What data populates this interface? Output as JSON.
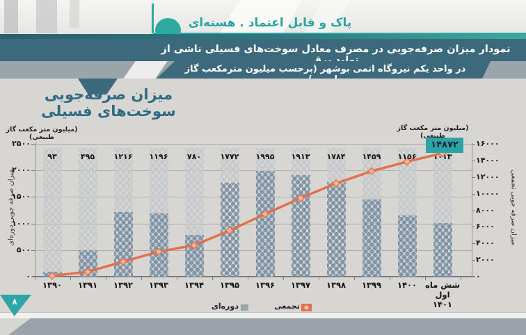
{
  "brand": {
    "tagline": "پاک و قابل اعتماد . هسته‌ای"
  },
  "banner": {
    "line1": "نمودار میزان صرفه‌جویی در مصرف معادل سوخت‌های فسیلی ناشی از تولید برق",
    "line2": "در واحد یکم نیروگاه اتمی بوشهر (برحسب میلیون مترمکعب گاز طبیعی)"
  },
  "page_number": "۸",
  "chart": {
    "title": "میزان صرفه‌جویی سوخت‌های فسیلی",
    "unit_label_left": "(میلیون متر مکعب گاز طبیعی)",
    "unit_label_right": "(میلیون متر مکعب گاز طبیعی)",
    "callout_value": "۱۴۸۷۲",
    "legend": {
      "periodic": "دوره‌ای",
      "cumulative": "تجمعی"
    }
  },
  "chart_data": {
    "type": "bar",
    "title": "میزان صرفه‌جویی سوخت‌های فسیلی",
    "categories": [
      "۱۳۹۰",
      "۱۳۹۱",
      "۱۳۹۲",
      "۱۳۹۳",
      "۱۳۹۴",
      "۱۳۹۵",
      "۱۳۹۶",
      "۱۳۹۷",
      "۱۳۹۸",
      "۱۳۹۹",
      "۱۴۰۰",
      "شش ماه اول\n۱۴۰۱"
    ],
    "series": [
      {
        "name": "دوره‌ای",
        "type": "bar",
        "axis": "left",
        "values": [
          93,
          495,
          1216,
          1196,
          780,
          1772,
          1995,
          1913,
          1784,
          1459,
          1156,
          1013
        ],
        "value_labels": [
          "۹۳",
          "۴۹۵",
          "۱۲۱۶",
          "۱۱۹۶",
          "۷۸۰",
          "۱۷۷۲",
          "۱۹۹۵",
          "۱۹۱۳",
          "۱۷۸۴",
          "۱۴۵۹",
          "۱۱۵۶",
          "۱۰۱۳"
        ]
      },
      {
        "name": "تجمعی",
        "type": "line",
        "axis": "right",
        "values": [
          93,
          588,
          1804,
          3000,
          3780,
          5552,
          7547,
          9460,
          11244,
          12703,
          13859,
          14872
        ],
        "last_value_label": "۱۴۸۷۲"
      }
    ],
    "left_axis": {
      "title": "میزان صرفه جویی دوره‌ای",
      "min": 0,
      "max": 2500,
      "tick_step": 500,
      "tick_labels": [
        "۰",
        "۵۰۰",
        "۱۰۰۰",
        "۱۵۰۰",
        "۲۰۰۰",
        "۲۵۰۰"
      ]
    },
    "right_axis": {
      "title": "میزان صرفه جویی تجمعی",
      "min": 0,
      "max": 16000,
      "tick_step": 2000,
      "tick_labels": [
        "۰",
        "۲۰۰۰",
        "۴۰۰۰",
        "۶۰۰۰",
        "۸۰۰۰",
        "۱۰۰۰۰",
        "۱۲۰۰۰",
        "۱۴۰۰۰",
        "۱۶۰۰۰"
      ]
    },
    "grid": true,
    "legend_position": "bottom",
    "colors": {
      "bar_fill": "#8096a8",
      "bar_background": "#c7cacc",
      "line": "#e0714a",
      "marker_fill": "#f5b298",
      "callout_bg": "#2da4a4",
      "accent_teal": "#2ea9a2",
      "banner_teal": "#3c6a7c",
      "band_gray": "#9aa4ab"
    }
  }
}
